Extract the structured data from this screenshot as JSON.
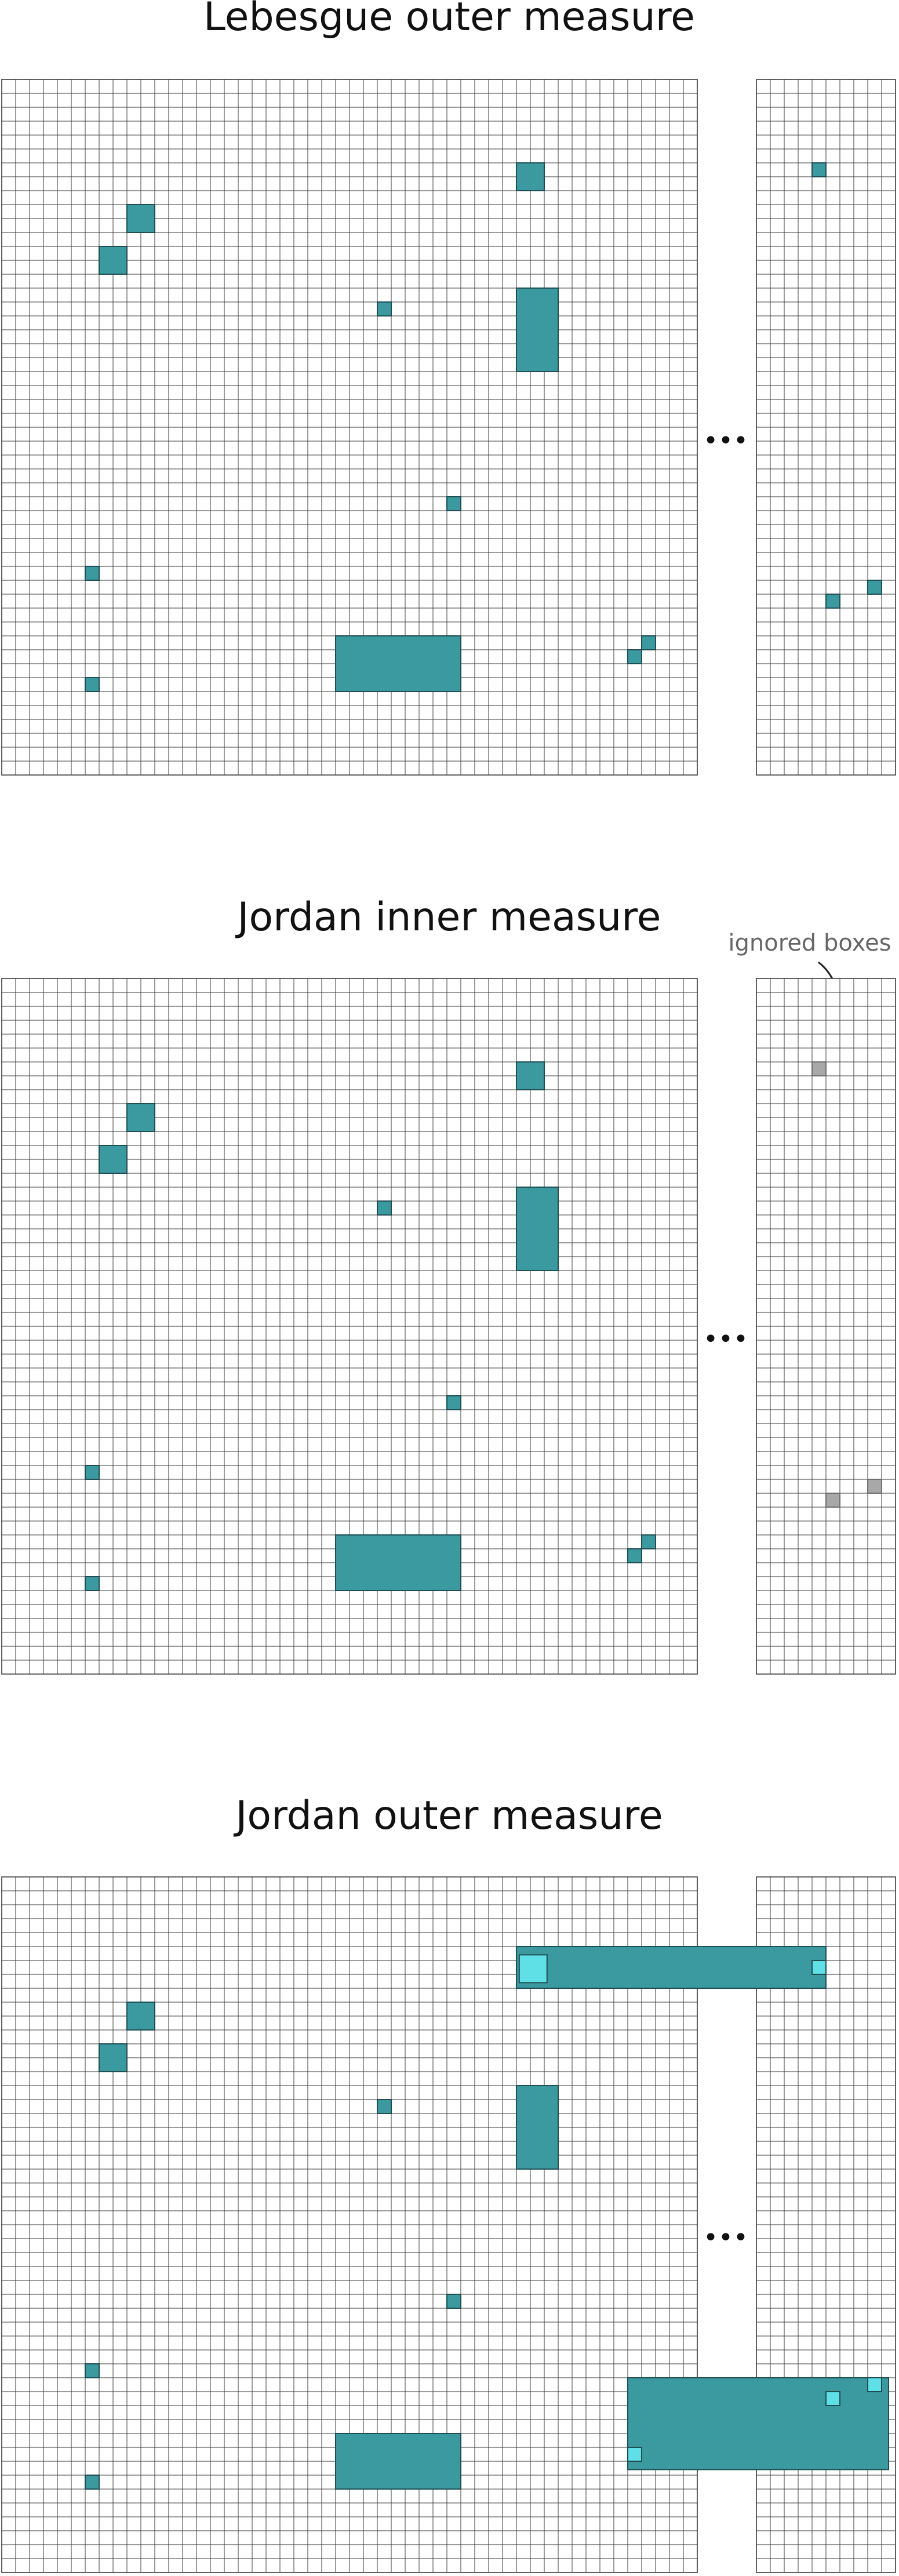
{
  "colors": {
    "background": "#ffffff",
    "grid_line": "#3a3a3a",
    "set_box": "#3b9aa0",
    "set_box_stroke": "#1e4e52",
    "cover_highlight": "#5fdfe6",
    "ignored_box": "#a8a8a8",
    "ignored_box_stroke": "#707070",
    "title_text": "#111111",
    "annotation_text": "#666666",
    "ellipsis": "#111111"
  },
  "grid": {
    "main_columns": 50,
    "main_rows": 50,
    "side_columns": 10,
    "side_rows": 50
  },
  "ellipsis_symbol": "•••",
  "panels": [
    {
      "title": "Lebesgue outer measure",
      "annotation": "",
      "main_boxes": [
        [
          37,
          6,
          39,
          8,
          "set"
        ],
        [
          9,
          9,
          11,
          11,
          "set"
        ],
        [
          7,
          12,
          9,
          14,
          "set"
        ],
        [
          27,
          16,
          28,
          17,
          "set"
        ],
        [
          37,
          15,
          40,
          21,
          "set"
        ],
        [
          32,
          30,
          33,
          31,
          "set"
        ],
        [
          6,
          35,
          7,
          36,
          "set"
        ],
        [
          24,
          40,
          33,
          44,
          "set"
        ],
        [
          46,
          40,
          47,
          41,
          "set"
        ],
        [
          45,
          41,
          46,
          42,
          "set"
        ],
        [
          6,
          43,
          7,
          44,
          "set"
        ]
      ],
      "side_boxes": [
        [
          4,
          6,
          5,
          7,
          "set"
        ],
        [
          8,
          36,
          9,
          37,
          "set"
        ],
        [
          5,
          37,
          6,
          38,
          "set"
        ]
      ],
      "bands": []
    },
    {
      "title": "Jordan inner measure",
      "annotation": "ignored boxes",
      "main_boxes": [
        [
          37,
          6,
          39,
          8,
          "set"
        ],
        [
          9,
          9,
          11,
          11,
          "set"
        ],
        [
          7,
          12,
          9,
          14,
          "set"
        ],
        [
          27,
          16,
          28,
          17,
          "set"
        ],
        [
          37,
          15,
          40,
          21,
          "set"
        ],
        [
          32,
          30,
          33,
          31,
          "set"
        ],
        [
          6,
          35,
          7,
          36,
          "set"
        ],
        [
          24,
          40,
          33,
          44,
          "set"
        ],
        [
          46,
          40,
          47,
          41,
          "set"
        ],
        [
          45,
          41,
          46,
          42,
          "set"
        ],
        [
          6,
          43,
          7,
          44,
          "set"
        ]
      ],
      "side_boxes": [
        [
          4,
          6,
          5,
          7,
          "ignored"
        ],
        [
          8,
          36,
          9,
          37,
          "ignored"
        ],
        [
          5,
          37,
          6,
          38,
          "ignored"
        ]
      ],
      "bands": []
    },
    {
      "title": "Jordan outer measure",
      "annotation": "",
      "main_boxes": [
        [
          9,
          9,
          11,
          11,
          "set"
        ],
        [
          7,
          12,
          9,
          14,
          "set"
        ],
        [
          27,
          16,
          28,
          17,
          "set"
        ],
        [
          37,
          15,
          40,
          21,
          "set"
        ],
        [
          32,
          30,
          33,
          31,
          "set"
        ],
        [
          6,
          35,
          7,
          36,
          "set"
        ],
        [
          24,
          40,
          33,
          44,
          "set"
        ],
        [
          6,
          43,
          7,
          44,
          "set"
        ]
      ],
      "side_boxes": [],
      "bands": [
        {
          "id": "upper-cover",
          "main_from_col": 37,
          "side_to_col": 5,
          "row_from": 5,
          "row_to": 8,
          "highlights": [
            [
              "main",
              37.2,
              5.6,
              39.2,
              7.6
            ],
            [
              "side",
              4,
              6,
              5,
              7
            ]
          ]
        },
        {
          "id": "lower-cover",
          "main_from_col": 45,
          "side_to_col": 9.5,
          "row_from": 36,
          "row_to": 42.6,
          "highlights": [
            [
              "main",
              45,
              41,
              46,
              42
            ],
            [
              "side",
              5,
              37,
              6,
              38
            ],
            [
              "side",
              8,
              36,
              9,
              37
            ]
          ]
        }
      ]
    }
  ]
}
